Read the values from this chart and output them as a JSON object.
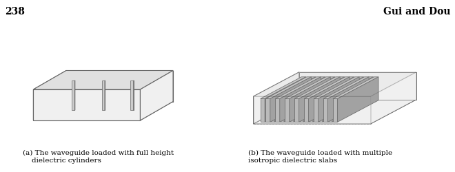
{
  "fig_width": 6.6,
  "fig_height": 2.5,
  "dpi": 100,
  "background_color": "#ffffff",
  "page_number": "238",
  "header_right": "Gui and Dou",
  "caption_a": "(a) The waveguide loaded with full height\n    dielectric cylinders",
  "caption_b": "(b) The waveguide loaded with multiple\nisotropic dielectric slabs",
  "box_line_color": "#666666",
  "box_fill_color": "#f0f0f0",
  "box_fill_top": "#e0e0e0",
  "slab_fill_front": "#aaaaaa",
  "slab_fill_side": "#888888",
  "slab_fill_top": "#bbbbbb",
  "slab_edge_color": "#444444",
  "post_fill": "#cccccc",
  "post_side": "#aaaaaa",
  "post_top": "#dddddd",
  "dashed_line_color": "#888888"
}
